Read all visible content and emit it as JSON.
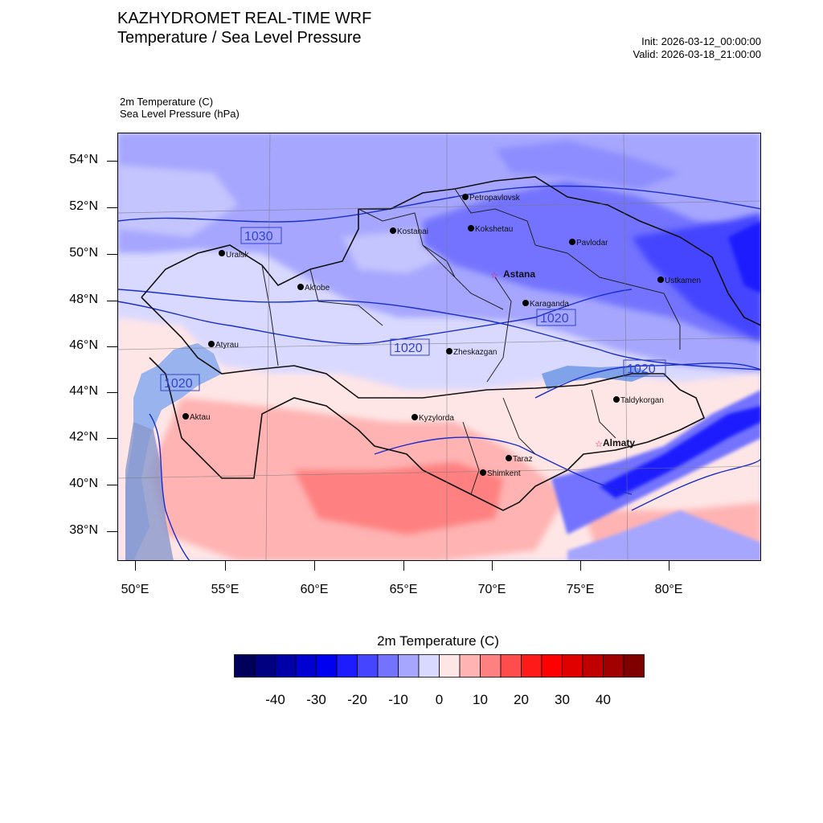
{
  "header": {
    "title_line1": "KAZHYDROMET REAL-TIME WRF",
    "title_line2": "Temperature / Sea Level Pressure",
    "init": "Init: 2026-03-12_00:00:00",
    "valid": "Valid: 2026-03-18_21:00:00",
    "field1": "2m Temperature   (C)",
    "field2": "Sea Level Pressure   (hPa)"
  },
  "axes": {
    "lat_labels": [
      "54°N",
      "52°N",
      "50°N",
      "48°N",
      "46°N",
      "44°N",
      "42°N",
      "40°N",
      "38°N"
    ],
    "lon_labels": [
      "50°E",
      "55°E",
      "60°E",
      "65°E",
      "70°E",
      "75°E",
      "80°E"
    ]
  },
  "isobar_labels": [
    "1030",
    "1020",
    "1020",
    "1020",
    "1020"
  ],
  "cities": [
    {
      "name": "Petropavlovsk"
    },
    {
      "name": "Kostanai"
    },
    {
      "name": "Kokshetau"
    },
    {
      "name": "Pavlodar"
    },
    {
      "name": "Uralsk"
    },
    {
      "name": "Astana"
    },
    {
      "name": "Ustkamen"
    },
    {
      "name": "Aktobe"
    },
    {
      "name": "Karaganda"
    },
    {
      "name": "Atyrau"
    },
    {
      "name": "Zheskazgan"
    },
    {
      "name": "Aktau"
    },
    {
      "name": "Taldykorgan"
    },
    {
      "name": "Kyzylorda"
    },
    {
      "name": "Almaty"
    },
    {
      "name": "Taraz"
    },
    {
      "name": "Shimkent"
    }
  ],
  "colorbar": {
    "title": "2m Temperature  (C)",
    "colors": [
      "#00005a",
      "#000080",
      "#0000a8",
      "#0000d0",
      "#0000f0",
      "#1c1cff",
      "#4545ff",
      "#7373ff",
      "#a6a6ff",
      "#d9d9ff",
      "#ffe6e6",
      "#ffb3b3",
      "#ff8080",
      "#ff4d4d",
      "#ff1a1a",
      "#ff0000",
      "#e00000",
      "#c00000",
      "#a00000",
      "#800000"
    ],
    "labels": [
      "-40",
      "-30",
      "-20",
      "-10",
      "0",
      "10",
      "20",
      "30",
      "40"
    ]
  }
}
